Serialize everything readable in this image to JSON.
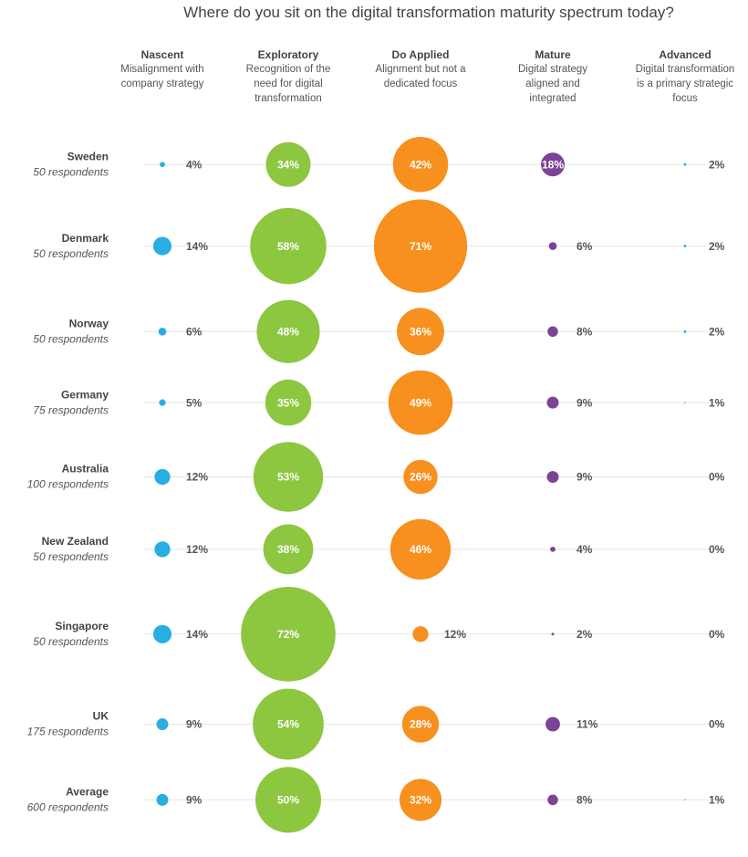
{
  "chart_data": {
    "type": "bubble-matrix",
    "title": "Where do you sit on the digital transformation maturity spectrum today?",
    "categories": [
      "Sweden",
      "Denmark",
      "Norway",
      "Germany",
      "Australia",
      "New Zealand",
      "Singapore",
      "UK",
      "Average"
    ],
    "respondents": [
      "50 respondents",
      "50 respondents",
      "50 respondents",
      "75 respondents",
      "100 respondents",
      "50 respondents",
      "50 respondents",
      "175 respondents",
      "600 respondents"
    ],
    "series": [
      {
        "name": "Nascent",
        "description": "Misalignment with company strategy",
        "color": "#29aee4",
        "values": [
          4,
          14,
          6,
          5,
          12,
          12,
          14,
          9,
          9
        ],
        "value_labels": [
          "4%",
          "14%",
          "6%",
          "5%",
          "12%",
          "12%",
          "14%",
          "9%",
          "9%"
        ]
      },
      {
        "name": "Exploratory",
        "description": "Recognition of the need for digital transformation",
        "color": "#8dc63f",
        "values": [
          34,
          58,
          48,
          35,
          53,
          38,
          72,
          54,
          50
        ],
        "value_labels": [
          "34%",
          "58%",
          "48%",
          "35%",
          "53%",
          "38%",
          "72%",
          "54%",
          "50%"
        ]
      },
      {
        "name": "Do Applied",
        "description": "Alignment but not a dedicated focus",
        "color": "#f7901e",
        "values": [
          42,
          71,
          36,
          49,
          26,
          46,
          12,
          28,
          32
        ],
        "value_labels": [
          "42%",
          "71%",
          "36%",
          "49%",
          "26%",
          "46%",
          "12%",
          "28%",
          "32%"
        ]
      },
      {
        "name": "Mature",
        "description": "Digital strategy aligned and integrated",
        "color": "#7b4397",
        "values": [
          18,
          6,
          8,
          9,
          9,
          4,
          2,
          11,
          8
        ],
        "value_labels": [
          "18%",
          "6%",
          "8%",
          "9%",
          "9%",
          "4%",
          "2%",
          "11%",
          "8%"
        ]
      },
      {
        "name": "Advanced",
        "description": "Digital transformation is a primary strategic focus",
        "color": "#29aee4",
        "values": [
          2,
          2,
          2,
          1,
          0,
          0,
          0,
          0,
          1
        ],
        "value_labels": [
          "2%",
          "2%",
          "2%",
          "1%",
          "0%",
          "0%",
          "0%",
          "0%",
          "1%"
        ]
      }
    ]
  }
}
